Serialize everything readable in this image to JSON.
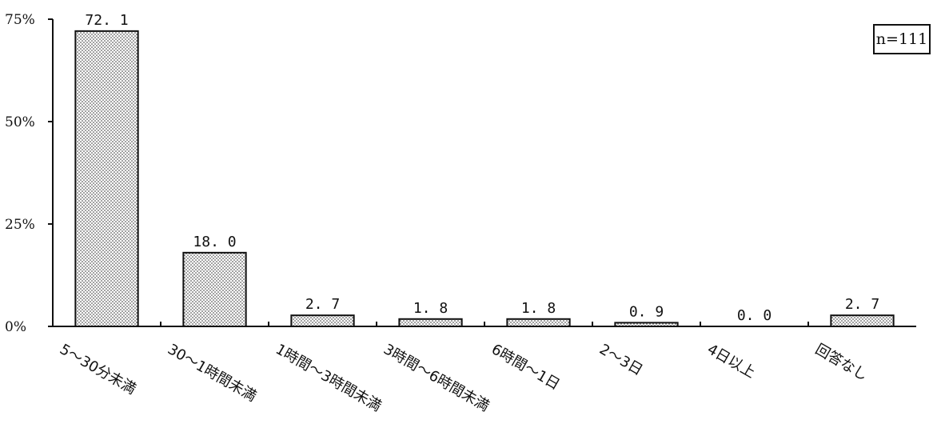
{
  "chart_data": {
    "type": "bar",
    "categories": [
      "5～30分未満",
      "30～1時間未満",
      "1時間～3時間未満",
      "3時間～6時間未満",
      "6時間～1日",
      "2～3日",
      "4日以上",
      "回答なし"
    ],
    "values": [
      72.1,
      18.0,
      2.7,
      1.8,
      1.8,
      0.9,
      0.0,
      2.7
    ],
    "value_labels": [
      "72. 1",
      "18. 0",
      "2. 7",
      "1. 8",
      "1. 8",
      "0. 9",
      "0. 0",
      "2. 7"
    ],
    "ylim": [
      0,
      75
    ],
    "yticks": [
      0,
      25,
      50,
      75
    ],
    "ytick_labels": [
      "0%",
      "25%",
      "50%",
      "75%"
    ],
    "title": "",
    "xlabel": "",
    "ylabel": "",
    "annotation": "n=111",
    "grid": false,
    "bar_fill": "dotted",
    "bar_color": "#ffffff",
    "bar_edge_color": "#111111"
  }
}
